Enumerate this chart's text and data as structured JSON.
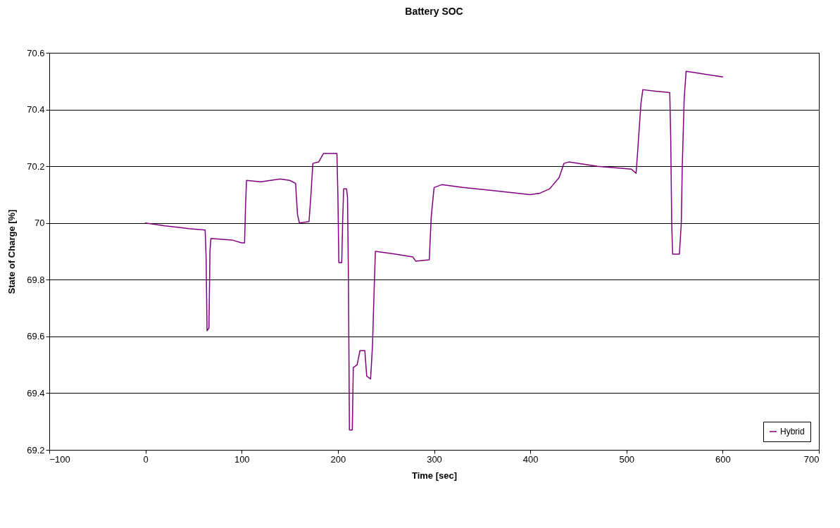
{
  "chart_data": {
    "type": "line",
    "title": "Battery SOC",
    "xlabel": "Time [sec]",
    "ylabel": "State of Charge [%]",
    "xlim": [
      -100,
      700
    ],
    "xticks": [
      -100,
      0,
      100,
      200,
      300,
      400,
      500,
      600,
      700
    ],
    "ylim": [
      69.2,
      70.6
    ],
    "yticks": [
      69.2,
      69.4,
      69.6,
      69.8,
      70,
      70.2,
      70.4,
      70.6
    ],
    "grid": "y",
    "legend": "bottom right",
    "marker": "none",
    "line_style": "solid",
    "series": [
      {
        "name": "Hybrid",
        "color": "#800080",
        "x": [
          0,
          20,
          45,
          62,
          63,
          64,
          66,
          67,
          68,
          90,
          100,
          103,
          104,
          105,
          120,
          140,
          150,
          156,
          158,
          160,
          170,
          172,
          174,
          180,
          185,
          199,
          200,
          201,
          204,
          205,
          206,
          209,
          210,
          211,
          212,
          215,
          216,
          220,
          223,
          228,
          230,
          234,
          236,
          238,
          239,
          260,
          278,
          281,
          295,
          297,
          300,
          308,
          330,
          360,
          400,
          410,
          420,
          430,
          435,
          440,
          470,
          505,
          510,
          512,
          515,
          517,
          530,
          545,
          546,
          547,
          548,
          555,
          557,
          558,
          560,
          562,
          600
        ],
        "values": [
          70.0,
          69.99,
          69.98,
          69.975,
          69.88,
          69.62,
          69.63,
          69.9,
          69.945,
          69.94,
          69.93,
          69.93,
          70.06,
          70.15,
          70.145,
          70.155,
          70.15,
          70.14,
          70.03,
          70.0,
          70.005,
          70.1,
          70.21,
          70.215,
          70.245,
          70.245,
          70.1,
          69.86,
          69.86,
          70.01,
          70.12,
          70.12,
          70.09,
          69.8,
          69.27,
          69.27,
          69.49,
          69.5,
          69.55,
          69.55,
          69.46,
          69.45,
          69.57,
          69.8,
          69.9,
          69.89,
          69.88,
          69.865,
          69.87,
          70.02,
          70.125,
          70.135,
          70.125,
          70.115,
          70.1,
          70.105,
          70.12,
          70.16,
          70.21,
          70.215,
          70.2,
          70.19,
          70.175,
          70.27,
          70.42,
          70.47,
          70.465,
          70.46,
          70.3,
          70.0,
          69.89,
          69.89,
          70.0,
          70.2,
          70.44,
          70.535,
          70.515
        ]
      }
    ]
  }
}
